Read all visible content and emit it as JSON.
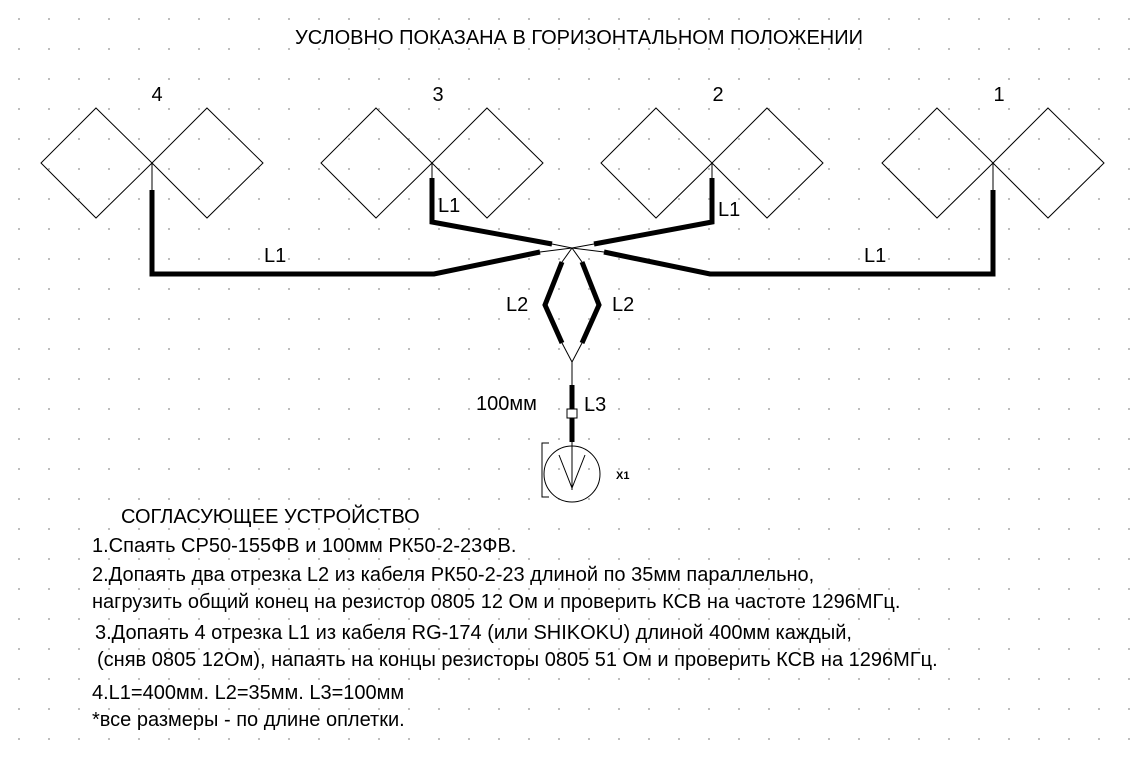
{
  "title": "УСЛОВНО ПОКАЗАНА В ГОРИЗОНТАЛЬНОМ ПОЛОЖЕНИИ",
  "antennas": [
    {
      "number": "4"
    },
    {
      "number": "3"
    },
    {
      "number": "2"
    },
    {
      "number": "1"
    }
  ],
  "cable_labels": {
    "l1": "L1",
    "l2": "L2",
    "l3": "L3",
    "l3_length": "100мм"
  },
  "connector_ref": "X1",
  "notes": {
    "heading": "СОГЛАСУЮЩЕЕ УСТРОЙСТВО",
    "step1": "1.Спаять СР50-155ФВ и 100мм РК50-2-23ФВ.",
    "step2_line1": "2.Допаять два отрезка L2 из кабеля РК50-2-23 длиной по 35мм параллельно,",
    "step2_line2": "нагрузить общий конец на резистор 0805 12 Ом и проверить КСВ на частоте 1296МГц.",
    "step3_line1": "3.Допаять 4 отрезка L1 из кабеля RG-174 (или SHIKOKU) длиной 400мм каждый,",
    "step3_line2": "(сняв 0805 12Ом), напаять на концы резисторы 0805 51 Ом и проверить КСВ на 1296МГц.",
    "step4": "4.L1=400мм. L2=35мм. L3=100мм",
    "footnote": "*все размеры - по длине оплетки."
  }
}
